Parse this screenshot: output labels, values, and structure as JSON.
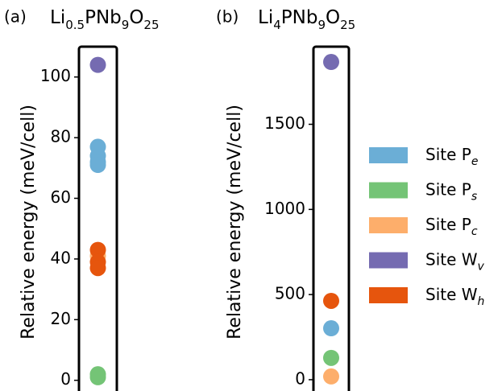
{
  "chart_data": [
    {
      "type": "strip",
      "panel_label": "(a)",
      "title": [
        {
          "text": "Li"
        },
        {
          "text": "0.5",
          "sub": true
        },
        {
          "text": "PNb"
        },
        {
          "text": "9",
          "sub": true
        },
        {
          "text": "O"
        },
        {
          "text": "25",
          "sub": true
        }
      ],
      "ylabel": "Relative energy (meV/cell)",
      "ylim": [
        -3,
        110
      ],
      "yticks": [
        0,
        20,
        40,
        60,
        80,
        100
      ],
      "series": [
        {
          "name": "Site P",
          "subscript": "e",
          "color": "#6baed6",
          "values": [
            77,
            74,
            72,
            71
          ]
        },
        {
          "name": "Site P",
          "subscript": "s",
          "color": "#74c476",
          "values": [
            2,
            1
          ]
        },
        {
          "name": "Site P",
          "subscript": "c",
          "color": "#fdae6b",
          "values": [
            41
          ]
        },
        {
          "name": "Site W",
          "subscript": "v",
          "color": "#756bb1",
          "values": [
            104
          ]
        },
        {
          "name": "Site W",
          "subscript": "h",
          "color": "#e6550d",
          "values": [
            43,
            39,
            37
          ]
        }
      ]
    },
    {
      "type": "strip",
      "panel_label": "(b)",
      "title": [
        {
          "text": "Li"
        },
        {
          "text": "4",
          "sub": true
        },
        {
          "text": "PNb"
        },
        {
          "text": "9",
          "sub": true
        },
        {
          "text": "O"
        },
        {
          "text": "25",
          "sub": true
        }
      ],
      "ylabel": "Relative energy (meV/cell)",
      "ylim": [
        -57,
        1956
      ],
      "yticks": [
        0,
        500,
        1000,
        1500
      ],
      "legend": "right",
      "series": [
        {
          "name": "Site P",
          "subscript": "e",
          "color": "#6baed6",
          "values": [
            302
          ]
        },
        {
          "name": "Site P",
          "subscript": "s",
          "color": "#74c476",
          "values": [
            128
          ]
        },
        {
          "name": "Site P",
          "subscript": "c",
          "color": "#fdae6b",
          "values": [
            19
          ]
        },
        {
          "name": "Site W",
          "subscript": "v",
          "color": "#756bb1",
          "values": [
            1866
          ]
        },
        {
          "name": "Site W",
          "subscript": "h",
          "color": "#e6550d",
          "values": [
            463
          ]
        }
      ]
    }
  ]
}
